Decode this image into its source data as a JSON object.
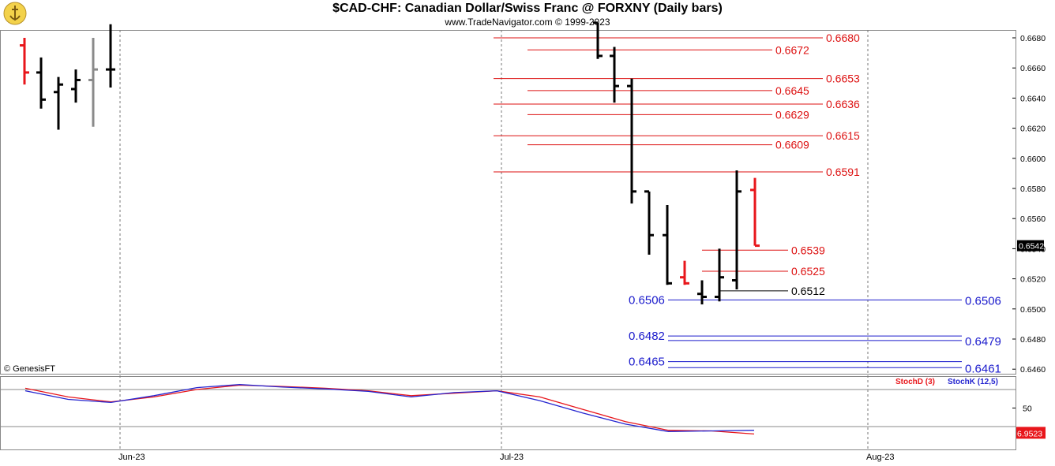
{
  "header": {
    "title": "$CAD-CHF:  Canadian Dollar/Swiss Franc @ FORXNY  (Daily bars)",
    "subtitle": "www.TradeNavigator.com © 1999-2023",
    "copyright": "© GenesisFT"
  },
  "colors": {
    "bar_black": "#000000",
    "bar_red": "#e8161b",
    "bar_gray": "#8a8a8a",
    "level_red": "#d11",
    "level_blue": "#1a1acc",
    "stoch_d": "#e8161b",
    "stoch_k": "#2525d0"
  },
  "chart_data": [
    {
      "type": "ohlc",
      "title": "$CAD-CHF:  Canadian Dollar/Swiss Franc @ FORXNY  (Daily bars)",
      "ylim": [
        0.6455,
        0.669
      ],
      "y_ticks": [
        "0.6680",
        "0.6660",
        "0.6640",
        "0.6620",
        "0.6600",
        "0.6580",
        "0.6560",
        "0.6540",
        "0.6520",
        "0.6500",
        "0.6480",
        "0.6460"
      ],
      "x_ticks": [
        "Jun-23",
        "Jul-23",
        "Aug-23"
      ],
      "last_price_label": "0.6542",
      "bars": [
        {
          "date": "2023-05-26",
          "o": 0.6675,
          "h": 0.668,
          "l": 0.6649,
          "c": 0.6657,
          "color": "red"
        },
        {
          "date": "2023-05-29",
          "o": 0.6657,
          "h": 0.6667,
          "l": 0.6633,
          "c": 0.6639,
          "color": "black"
        },
        {
          "date": "2023-05-30",
          "o": 0.6644,
          "h": 0.6654,
          "l": 0.6619,
          "c": 0.6649,
          "color": "black"
        },
        {
          "date": "2023-05-31",
          "o": 0.6646,
          "h": 0.6659,
          "l": 0.6637,
          "c": 0.6652,
          "color": "black"
        },
        {
          "date": "2023-06-01",
          "o": 0.6652,
          "h": 0.668,
          "l": 0.6621,
          "c": 0.6659,
          "color": "gray"
        },
        {
          "date": "2023-06-02",
          "o": 0.6659,
          "h": 0.6689,
          "l": 0.6647,
          "c": 0.6659,
          "color": "black"
        },
        {
          "date": "2023-07-13",
          "o": 0.669,
          "h": 0.669,
          "l": 0.6666,
          "c": 0.6668,
          "color": "black"
        },
        {
          "date": "2023-07-14",
          "o": 0.6668,
          "h": 0.6674,
          "l": 0.6637,
          "c": 0.6648,
          "color": "black"
        },
        {
          "date": "2023-07-17",
          "o": 0.6648,
          "h": 0.6653,
          "l": 0.657,
          "c": 0.6578,
          "color": "black"
        },
        {
          "date": "2023-07-18",
          "o": 0.6578,
          "h": 0.6578,
          "l": 0.6536,
          "c": 0.6549,
          "color": "black"
        },
        {
          "date": "2023-07-19",
          "o": 0.6549,
          "h": 0.6569,
          "l": 0.6516,
          "c": 0.6517,
          "color": "black"
        },
        {
          "date": "2023-07-20",
          "o": 0.6521,
          "h": 0.6532,
          "l": 0.6516,
          "c": 0.6517,
          "color": "red"
        },
        {
          "date": "2023-07-21",
          "o": 0.651,
          "h": 0.6519,
          "l": 0.6503,
          "c": 0.6508,
          "color": "black"
        },
        {
          "date": "2023-07-24",
          "o": 0.6508,
          "h": 0.654,
          "l": 0.6505,
          "c": 0.6521,
          "color": "black"
        },
        {
          "date": "2023-07-25",
          "o": 0.6519,
          "h": 0.6592,
          "l": 0.6513,
          "c": 0.6578,
          "color": "black"
        },
        {
          "date": "2023-07-26",
          "o": 0.6579,
          "h": 0.6587,
          "l": 0.6542,
          "c": 0.6542,
          "color": "red"
        }
      ],
      "levels": [
        {
          "value": 0.668,
          "label": "0.6680",
          "color": "red"
        },
        {
          "value": 0.6672,
          "label": "0.6672",
          "color": "red"
        },
        {
          "value": 0.6653,
          "label": "0.6653",
          "color": "red"
        },
        {
          "value": 0.6645,
          "label": "0.6645",
          "color": "red"
        },
        {
          "value": 0.6636,
          "label": "0.6636",
          "color": "red"
        },
        {
          "value": 0.6629,
          "label": "0.6629",
          "color": "red"
        },
        {
          "value": 0.6615,
          "label": "0.6615",
          "color": "red"
        },
        {
          "value": 0.6609,
          "label": "0.6609",
          "color": "red"
        },
        {
          "value": 0.6591,
          "label": "0.6591",
          "color": "red"
        },
        {
          "value": 0.6539,
          "label": "0.6539",
          "color": "red"
        },
        {
          "value": 0.6525,
          "label": "0.6525",
          "color": "red"
        },
        {
          "value": 0.6512,
          "label": "0.6512",
          "color": "black"
        }
      ],
      "support_lines": [
        {
          "left_value": 0.6506,
          "left_label": "0.6506",
          "right_value": 0.6506,
          "right_label": "0.6506"
        },
        {
          "left_value": 0.6482,
          "left_label": "0.6482",
          "right_value": 0.6479,
          "right_label": "0.6479"
        },
        {
          "left_value": 0.6465,
          "left_label": "0.6465",
          "right_value": 0.6461,
          "right_label": "0.6461"
        }
      ]
    },
    {
      "type": "line",
      "legend": [
        "StochD (3)",
        "StochK (12,5)"
      ],
      "ylim": [
        0,
        100
      ],
      "y_ticks": [
        "50"
      ],
      "last_value_label": "6.9523",
      "guides": [
        80,
        20
      ],
      "x": [
        "2023-05-22",
        "2023-05-26",
        "2023-05-30",
        "2023-06-03",
        "2023-06-07",
        "2023-06-11",
        "2023-06-15",
        "2023-06-19",
        "2023-06-23",
        "2023-06-27",
        "2023-07-01",
        "2023-07-05",
        "2023-07-09",
        "2023-07-13",
        "2023-07-17",
        "2023-07-21",
        "2023-07-25",
        "2023-07-27"
      ],
      "series": [
        {
          "name": "StochD (3)",
          "values": [
            82,
            68,
            60,
            68,
            80,
            87,
            85,
            82,
            78,
            70,
            74,
            78,
            68,
            48,
            28,
            14,
            13,
            8
          ]
        },
        {
          "name": "StochK (12,5)",
          "values": [
            78,
            64,
            59,
            70,
            83,
            88,
            84,
            81,
            77,
            68,
            75,
            78,
            62,
            42,
            24,
            12,
            13,
            14
          ]
        }
      ]
    }
  ]
}
